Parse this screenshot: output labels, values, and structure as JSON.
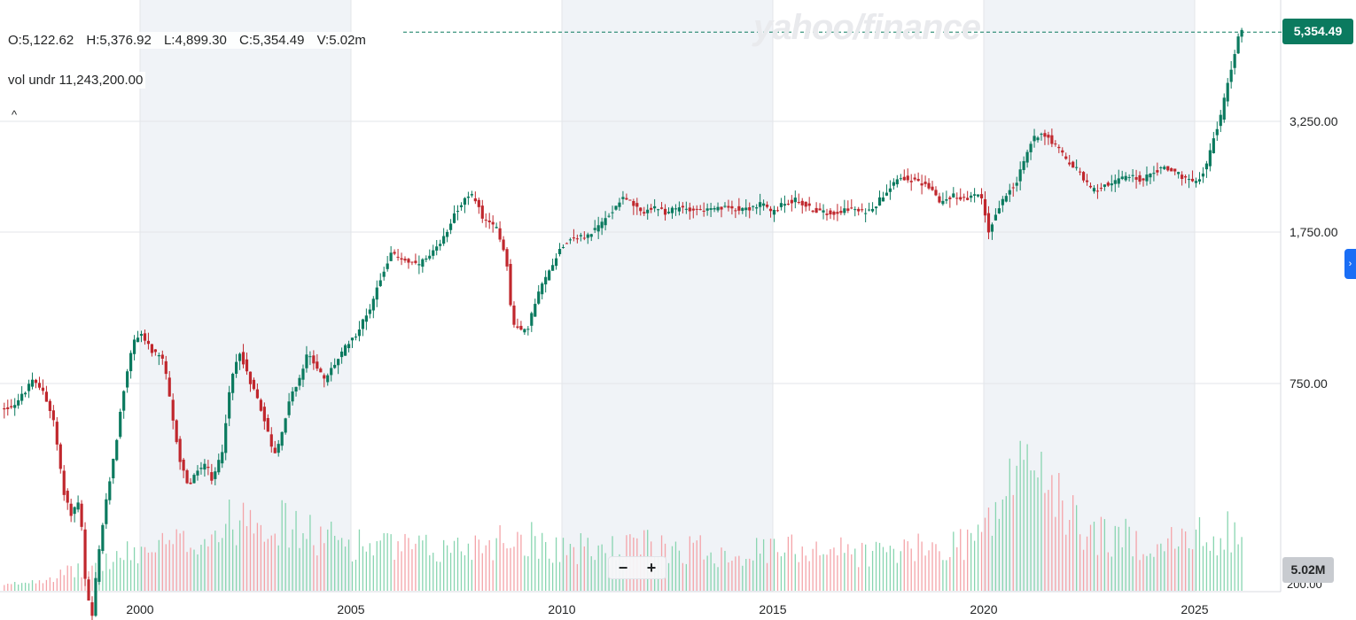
{
  "watermark": "yahoo/finance",
  "ohlc": {
    "open": "O:5,122.62",
    "high": "H:5,376.92",
    "low": "L:4,899.30",
    "close": "C:5,354.49",
    "volume": "V:5.02m"
  },
  "vol_underlying": {
    "label": "vol undr",
    "value": "11,243,200.00"
  },
  "last_price_label": "5,354.49",
  "volume_badge": "5.02M",
  "volume_axis_under": "200.00",
  "controls": {
    "collapse_glyph": "^",
    "zoom_out": "−",
    "zoom_in": "+",
    "side_tab_glyph": "›"
  },
  "colors": {
    "up": "#0b7a5f",
    "down": "#c0272d",
    "vol_up": "#88d5b0",
    "vol_down": "#f4a3a8",
    "shade": "#f0f3f7",
    "grid": "#e3e6ea",
    "last_price": "#0b7a5f"
  },
  "chart_data": {
    "type": "candlestick",
    "scale": "log",
    "y_ticks": [
      {
        "value": 750,
        "label": "750.00"
      },
      {
        "value": 1750,
        "label": "1,750.00"
      },
      {
        "value": 3250,
        "label": "3,250.00"
      }
    ],
    "x_ticks": [
      {
        "year": 2000,
        "label": "2000"
      },
      {
        "year": 2005,
        "label": "2005"
      },
      {
        "year": 2010,
        "label": "2010"
      },
      {
        "year": 2015,
        "label": "2015"
      },
      {
        "year": 2020,
        "label": "2020"
      },
      {
        "year": 2025,
        "label": "2025"
      }
    ],
    "x_range": [
      1996.7,
      2026.35
    ],
    "shaded_periods": [
      [
        2000,
        2005
      ],
      [
        2010,
        2015
      ],
      [
        2020,
        2025
      ]
    ],
    "last_close": 5354.49,
    "price_path": [
      [
        1996.75,
        650
      ],
      [
        1997.0,
        660
      ],
      [
        1997.2,
        690
      ],
      [
        1997.5,
        760
      ],
      [
        1997.75,
        720
      ],
      [
        1998.0,
        600
      ],
      [
        1998.2,
        420
      ],
      [
        1998.4,
        360
      ],
      [
        1998.6,
        390
      ],
      [
        1998.75,
        240
      ],
      [
        1998.9,
        200
      ],
      [
        1999.1,
        310
      ],
      [
        1999.3,
        420
      ],
      [
        1999.5,
        560
      ],
      [
        1999.75,
        820
      ],
      [
        1999.9,
        950
      ],
      [
        2000.05,
        1000
      ],
      [
        2000.3,
        900
      ],
      [
        2000.6,
        850
      ],
      [
        2000.8,
        620
      ],
      [
        2001.0,
        480
      ],
      [
        2001.2,
        420
      ],
      [
        2001.4,
        460
      ],
      [
        2001.6,
        480
      ],
      [
        2001.75,
        430
      ],
      [
        2002.0,
        520
      ],
      [
        2002.2,
        760
      ],
      [
        2002.4,
        900
      ],
      [
        2002.6,
        780
      ],
      [
        2002.8,
        700
      ],
      [
        2003.0,
        610
      ],
      [
        2003.2,
        500
      ],
      [
        2003.4,
        560
      ],
      [
        2003.6,
        700
      ],
      [
        2003.8,
        750
      ],
      [
        2004.0,
        880
      ],
      [
        2004.2,
        840
      ],
      [
        2004.4,
        760
      ],
      [
        2004.6,
        820
      ],
      [
        2004.8,
        880
      ],
      [
        2005.0,
        950
      ],
      [
        2005.2,
        1000
      ],
      [
        2005.5,
        1150
      ],
      [
        2005.8,
        1400
      ],
      [
        2006.0,
        1550
      ],
      [
        2006.3,
        1500
      ],
      [
        2006.6,
        1450
      ],
      [
        2006.9,
        1520
      ],
      [
        2007.2,
        1650
      ],
      [
        2007.5,
        1950
      ],
      [
        2007.75,
        2100
      ],
      [
        2007.95,
        2150
      ],
      [
        2008.2,
        1850
      ],
      [
        2008.5,
        1800
      ],
      [
        2008.75,
        1450
      ],
      [
        2008.85,
        1050
      ],
      [
        2009.0,
        1020
      ],
      [
        2009.2,
        1000
      ],
      [
        2009.5,
        1250
      ],
      [
        2009.8,
        1450
      ],
      [
        2010.0,
        1600
      ],
      [
        2010.3,
        1700
      ],
      [
        2010.6,
        1700
      ],
      [
        2010.9,
        1800
      ],
      [
        2011.2,
        1950
      ],
      [
        2011.5,
        2150
      ],
      [
        2011.7,
        2050
      ],
      [
        2011.9,
        1950
      ],
      [
        2012.2,
        2000
      ],
      [
        2012.5,
        1950
      ],
      [
        2012.8,
        2000
      ],
      [
        2013.0,
        2000
      ],
      [
        2013.3,
        1980
      ],
      [
        2013.6,
        1980
      ],
      [
        2013.9,
        2000
      ],
      [
        2014.2,
        2000
      ],
      [
        2014.5,
        2000
      ],
      [
        2014.8,
        2050
      ],
      [
        2015.0,
        1950
      ],
      [
        2015.3,
        2050
      ],
      [
        2015.6,
        2100
      ],
      [
        2015.9,
        2000
      ],
      [
        2016.2,
        1950
      ],
      [
        2016.5,
        1950
      ],
      [
        2016.8,
        2000
      ],
      [
        2017.2,
        1950
      ],
      [
        2017.5,
        2050
      ],
      [
        2017.8,
        2250
      ],
      [
        2018.0,
        2380
      ],
      [
        2018.3,
        2350
      ],
      [
        2018.6,
        2280
      ],
      [
        2018.8,
        2250
      ],
      [
        2019.0,
        2050
      ],
      [
        2019.3,
        2150
      ],
      [
        2019.6,
        2100
      ],
      [
        2019.9,
        2150
      ],
      [
        2020.0,
        2100
      ],
      [
        2020.15,
        1750
      ],
      [
        2020.3,
        1900
      ],
      [
        2020.6,
        2200
      ],
      [
        2020.8,
        2300
      ],
      [
        2021.0,
        2600
      ],
      [
        2021.2,
        2950
      ],
      [
        2021.4,
        3050
      ],
      [
        2021.6,
        2950
      ],
      [
        2021.8,
        2800
      ],
      [
        2022.0,
        2600
      ],
      [
        2022.3,
        2450
      ],
      [
        2022.6,
        2200
      ],
      [
        2022.8,
        2250
      ],
      [
        2023.0,
        2300
      ],
      [
        2023.3,
        2350
      ],
      [
        2023.6,
        2400
      ],
      [
        2023.8,
        2300
      ],
      [
        2024.0,
        2450
      ],
      [
        2024.3,
        2500
      ],
      [
        2024.6,
        2450
      ],
      [
        2024.8,
        2350
      ],
      [
        2025.0,
        2300
      ],
      [
        2025.2,
        2400
      ],
      [
        2025.35,
        2600
      ],
      [
        2025.5,
        3000
      ],
      [
        2025.65,
        3300
      ],
      [
        2025.8,
        3900
      ],
      [
        2025.95,
        4600
      ],
      [
        2026.1,
        5354.49
      ]
    ],
    "volume_path": [
      [
        1996.75,
        0.2
      ],
      [
        1998.0,
        0.6
      ],
      [
        1999.0,
        1.1
      ],
      [
        2000.0,
        1.6
      ],
      [
        2001.0,
        1.9
      ],
      [
        2002.0,
        2.5
      ],
      [
        2002.6,
        3.5
      ],
      [
        2003.0,
        2.9
      ],
      [
        2004.0,
        2.2
      ],
      [
        2005.0,
        1.9
      ],
      [
        2006.0,
        1.7
      ],
      [
        2007.0,
        1.6
      ],
      [
        2008.0,
        1.9
      ],
      [
        2009.0,
        2.2
      ],
      [
        2010.0,
        1.7
      ],
      [
        2011.0,
        1.6
      ],
      [
        2012.0,
        1.8
      ],
      [
        2013.0,
        1.7
      ],
      [
        2014.0,
        1.5
      ],
      [
        2015.0,
        1.6
      ],
      [
        2016.0,
        1.8
      ],
      [
        2017.0,
        1.5
      ],
      [
        2018.0,
        1.6
      ],
      [
        2019.0,
        1.7
      ],
      [
        2020.0,
        2.4
      ],
      [
        2020.6,
        4.3
      ],
      [
        2021.2,
        5.6
      ],
      [
        2021.8,
        3.2
      ],
      [
        2022.5,
        2.3
      ],
      [
        2023.5,
        2.0
      ],
      [
        2024.5,
        1.9
      ],
      [
        2025.5,
        2.3
      ],
      [
        2026.1,
        2.6
      ]
    ],
    "volume_max": 6.0
  }
}
